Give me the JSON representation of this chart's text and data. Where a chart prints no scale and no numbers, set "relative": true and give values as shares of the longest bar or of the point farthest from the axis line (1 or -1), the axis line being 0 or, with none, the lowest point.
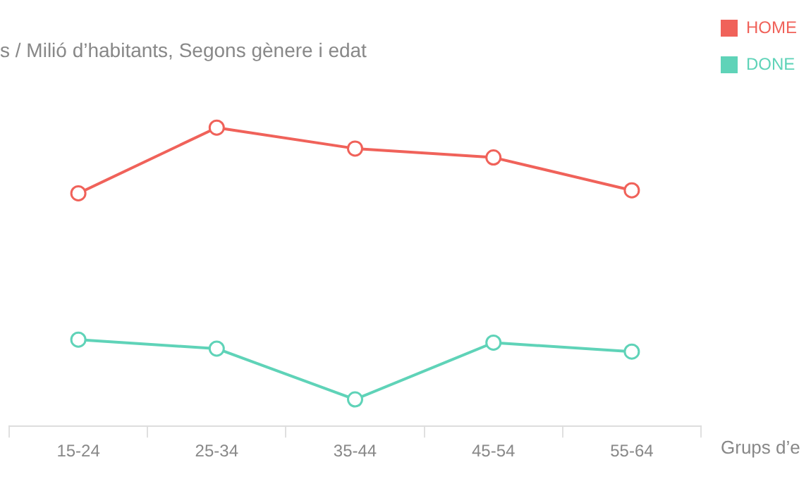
{
  "chart_data": {
    "type": "line",
    "title": "s / Milió d’habitants, Segons gènere i edat",
    "xlabel": "Grups d’e",
    "categories": [
      "15-24",
      "25-34",
      "35-44",
      "45-54",
      "55-64"
    ],
    "relative": true,
    "series": [
      {
        "name": "HOME",
        "color": "#f0625a",
        "values": [
          0.78,
          1,
          0.93,
          0.9,
          0.79
        ]
      },
      {
        "name": "DONE",
        "color": "#5fd3b8",
        "values": [
          0.29,
          0.26,
          0.09,
          0.28,
          0.25
        ]
      }
    ],
    "marker": "circle",
    "line_style": "solid",
    "grid": false,
    "legend": "top right"
  }
}
